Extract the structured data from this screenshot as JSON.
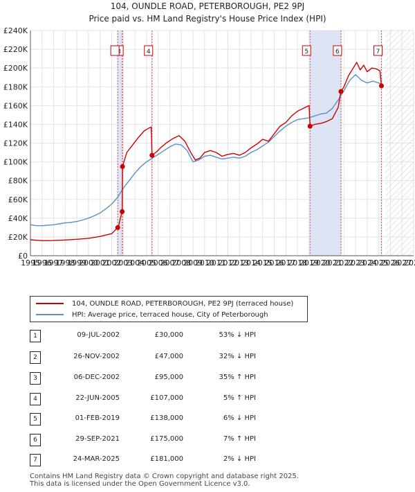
{
  "chart_data": {
    "type": "line",
    "title": "104, OUNDLE ROAD, PETERBOROUGH, PE2 9PJ",
    "subtitle": "Price paid vs. HM Land Registry's House Price Index (HPI)",
    "xlim": [
      1995,
      2028
    ],
    "ylim": [
      0,
      240000
    ],
    "x_ticks": [
      "1995",
      "1996",
      "1997",
      "1998",
      "1999",
      "2000",
      "2001",
      "2002",
      "2003",
      "2004",
      "2005",
      "2006",
      "2007",
      "2008",
      "2009",
      "2010",
      "2011",
      "2012",
      "2013",
      "2014",
      "2015",
      "2016",
      "2017",
      "2018",
      "2019",
      "2020",
      "2021",
      "2022",
      "2023",
      "2024",
      "2025",
      "2026",
      "2027",
      "2028"
    ],
    "y_ticks": [
      {
        "value": 0,
        "label": "£0"
      },
      {
        "value": 20000,
        "label": "£20K"
      },
      {
        "value": 40000,
        "label": "£40K"
      },
      {
        "value": 60000,
        "label": "£60K"
      },
      {
        "value": 80000,
        "label": "£80K"
      },
      {
        "value": 100000,
        "label": "£100K"
      },
      {
        "value": 120000,
        "label": "£120K"
      },
      {
        "value": 140000,
        "label": "£140K"
      },
      {
        "value": 160000,
        "label": "£160K"
      },
      {
        "value": 180000,
        "label": "£180K"
      },
      {
        "value": 200000,
        "label": "£200K"
      },
      {
        "value": 220000,
        "label": "£220K"
      },
      {
        "value": 240000,
        "label": "£240K"
      }
    ],
    "series": [
      {
        "name": "104, OUNDLE ROAD, PETERBOROUGH, PE2 9PJ (terraced house)",
        "color": "#cc0000",
        "points": [
          [
            1995.0,
            17000
          ],
          [
            1995.5,
            16500
          ],
          [
            1996.0,
            16000
          ],
          [
            1997.0,
            16200
          ],
          [
            1998.0,
            16800
          ],
          [
            1999.0,
            17500
          ],
          [
            2000.0,
            18500
          ],
          [
            2001.0,
            20500
          ],
          [
            2002.0,
            23500
          ],
          [
            2002.52,
            30000
          ],
          [
            2002.6,
            32000
          ],
          [
            2002.75,
            40000
          ],
          [
            2002.9,
            47000
          ],
          [
            2002.93,
            95000
          ],
          [
            2003.3,
            110000
          ],
          [
            2003.8,
            118000
          ],
          [
            2004.3,
            126000
          ],
          [
            2004.8,
            133000
          ],
          [
            2005.2,
            136000
          ],
          [
            2005.4,
            137000
          ],
          [
            2005.47,
            107000
          ],
          [
            2005.8,
            110000
          ],
          [
            2006.3,
            116000
          ],
          [
            2006.8,
            121000
          ],
          [
            2007.3,
            125000
          ],
          [
            2007.8,
            128000
          ],
          [
            2008.3,
            122000
          ],
          [
            2008.8,
            110000
          ],
          [
            2009.2,
            102000
          ],
          [
            2009.6,
            104000
          ],
          [
            2010.0,
            110000
          ],
          [
            2010.5,
            112000
          ],
          [
            2011.0,
            110000
          ],
          [
            2011.5,
            106000
          ],
          [
            2012.0,
            108000
          ],
          [
            2012.5,
            109000
          ],
          [
            2013.0,
            107000
          ],
          [
            2013.5,
            110000
          ],
          [
            2014.0,
            115000
          ],
          [
            2014.5,
            119000
          ],
          [
            2015.0,
            124000
          ],
          [
            2015.5,
            122000
          ],
          [
            2016.0,
            130000
          ],
          [
            2016.5,
            138000
          ],
          [
            2017.0,
            142000
          ],
          [
            2017.5,
            149000
          ],
          [
            2018.0,
            154000
          ],
          [
            2018.5,
            157000
          ],
          [
            2019.0,
            160000
          ],
          [
            2019.08,
            138000
          ],
          [
            2019.5,
            140000
          ],
          [
            2020.0,
            141000
          ],
          [
            2020.5,
            143000
          ],
          [
            2021.0,
            146000
          ],
          [
            2021.5,
            158000
          ],
          [
            2021.74,
            175000
          ],
          [
            2022.0,
            180000
          ],
          [
            2022.4,
            192000
          ],
          [
            2022.8,
            200000
          ],
          [
            2023.1,
            206000
          ],
          [
            2023.4,
            198000
          ],
          [
            2023.7,
            203000
          ],
          [
            2024.0,
            196000
          ],
          [
            2024.4,
            200000
          ],
          [
            2024.8,
            199000
          ],
          [
            2025.1,
            197000
          ],
          [
            2025.23,
            181000
          ]
        ]
      },
      {
        "name": "HPI: Average price, terraced house, City of Peterborough",
        "color": "#5b8ec4",
        "points": [
          [
            1995.0,
            33000
          ],
          [
            1995.5,
            32000
          ],
          [
            1996.0,
            32000
          ],
          [
            1996.5,
            32500
          ],
          [
            1997.0,
            33000
          ],
          [
            1997.5,
            34000
          ],
          [
            1998.0,
            35000
          ],
          [
            1998.5,
            35500
          ],
          [
            1999.0,
            36500
          ],
          [
            1999.5,
            38000
          ],
          [
            2000.0,
            40000
          ],
          [
            2000.5,
            42500
          ],
          [
            2001.0,
            45500
          ],
          [
            2001.5,
            50000
          ],
          [
            2002.0,
            55000
          ],
          [
            2002.5,
            62000
          ],
          [
            2003.0,
            72000
          ],
          [
            2003.5,
            80000
          ],
          [
            2004.0,
            88000
          ],
          [
            2004.5,
            95000
          ],
          [
            2005.0,
            100000
          ],
          [
            2005.5,
            104000
          ],
          [
            2006.0,
            108000
          ],
          [
            2006.5,
            112000
          ],
          [
            2007.0,
            116000
          ],
          [
            2007.5,
            119000
          ],
          [
            2008.0,
            118000
          ],
          [
            2008.5,
            112000
          ],
          [
            2009.0,
            100000
          ],
          [
            2009.5,
            102000
          ],
          [
            2010.0,
            106000
          ],
          [
            2010.5,
            107000
          ],
          [
            2011.0,
            105000
          ],
          [
            2011.5,
            103000
          ],
          [
            2012.0,
            104000
          ],
          [
            2012.5,
            105000
          ],
          [
            2013.0,
            104000
          ],
          [
            2013.5,
            106000
          ],
          [
            2014.0,
            110000
          ],
          [
            2014.5,
            113000
          ],
          [
            2015.0,
            117000
          ],
          [
            2015.5,
            121000
          ],
          [
            2016.0,
            127000
          ],
          [
            2016.5,
            133000
          ],
          [
            2017.0,
            138000
          ],
          [
            2017.5,
            142000
          ],
          [
            2018.0,
            145000
          ],
          [
            2018.5,
            146000
          ],
          [
            2019.0,
            147000
          ],
          [
            2019.5,
            149000
          ],
          [
            2020.0,
            151000
          ],
          [
            2020.5,
            152000
          ],
          [
            2021.0,
            157000
          ],
          [
            2021.5,
            166000
          ],
          [
            2022.0,
            176000
          ],
          [
            2022.5,
            187000
          ],
          [
            2023.0,
            193000
          ],
          [
            2023.5,
            187000
          ],
          [
            2024.0,
            184000
          ],
          [
            2024.5,
            186000
          ],
          [
            2025.0,
            184000
          ],
          [
            2025.23,
            183000
          ]
        ]
      }
    ],
    "transactions": [
      {
        "num": "1",
        "date": "09-JUL-2002",
        "price": "£30,000",
        "hpi": "53% ↓ HPI",
        "x": 2002.52,
        "y": 30000
      },
      {
        "num": "2",
        "date": "26-NOV-2002",
        "price": "£47,000",
        "hpi": "32% ↓ HPI",
        "x": 2002.9,
        "y": 47000
      },
      {
        "num": "3",
        "date": "06-DEC-2002",
        "price": "£95,000",
        "hpi": "35% ↑ HPI",
        "x": 2002.93,
        "y": 95000
      },
      {
        "num": "4",
        "date": "22-JUN-2005",
        "price": "£107,000",
        "hpi": "5% ↑ HPI",
        "x": 2005.47,
        "y": 107000
      },
      {
        "num": "5",
        "date": "01-FEB-2019",
        "price": "£138,000",
        "hpi": "6% ↓ HPI",
        "x": 2019.08,
        "y": 138000
      },
      {
        "num": "6",
        "date": "29-SEP-2021",
        "price": "£175,000",
        "hpi": "7% ↑ HPI",
        "x": 2021.74,
        "y": 175000
      },
      {
        "num": "7",
        "date": "24-MAR-2025",
        "price": "£181,000",
        "hpi": "2% ↓ HPI",
        "x": 2025.23,
        "y": 181000
      }
    ],
    "shaded_periods": [
      [
        2002.52,
        2002.93
      ],
      [
        2005.47,
        2005.47
      ],
      [
        2019.08,
        2021.74
      ],
      [
        2025.23,
        2025.23
      ]
    ],
    "forecast_start": 2025.23
  },
  "legend": {
    "property_label": "104, OUNDLE ROAD, PETERBOROUGH, PE2 9PJ (terraced house)",
    "hpi_label": "HPI: Average price, terraced house, City of Peterborough",
    "property_color": "#cc0000",
    "hpi_color": "#5b8ec4"
  },
  "footer": {
    "line1": "Contains HM Land Registry data © Crown copyright and database right 2025.",
    "line2": "This data is licensed under the Open Government Licence v3.0."
  }
}
